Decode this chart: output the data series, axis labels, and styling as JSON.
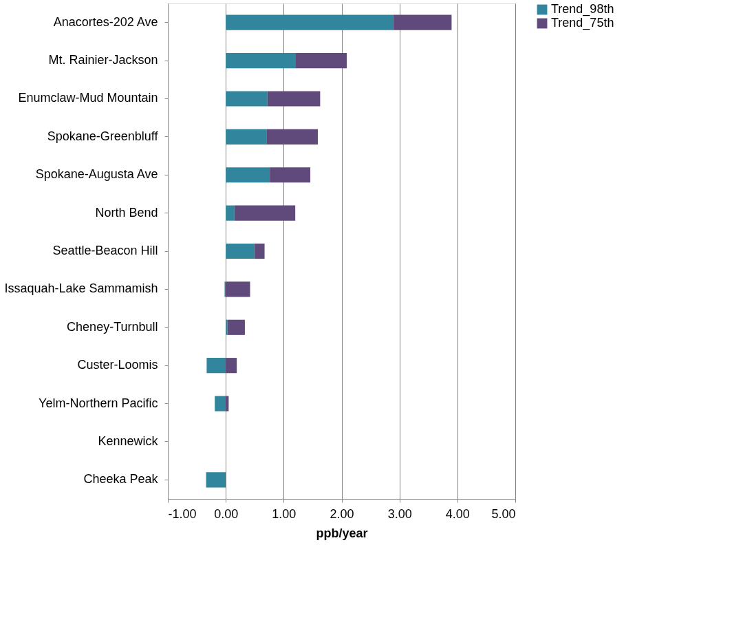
{
  "chart_data": {
    "type": "bar",
    "orientation": "horizontal",
    "stacked": true,
    "xlabel": "ppb/year",
    "categories": [
      "Anacortes-202 Ave",
      "Mt. Rainier-Jackson",
      "Enumclaw-Mud Mountain",
      "Spokane-Greenbluff",
      "Spokane-Augusta Ave",
      "North Bend",
      "Seattle-Beacon Hill",
      "Issaquah-Lake Sammamish",
      "Cheney-Turnbull",
      "Custer-Loomis",
      "Yelm-Northern Pacific",
      "Kennewick",
      "Cheeka Peak"
    ],
    "series": [
      {
        "name": "Trend_98th",
        "color": "#31859c",
        "values": [
          2.89,
          1.21,
          0.72,
          0.71,
          0.76,
          0.15,
          0.5,
          -0.02,
          0.03,
          -0.33,
          -0.19,
          null,
          -0.34
        ]
      },
      {
        "name": "Trend_75th",
        "color": "#604a7b",
        "values": [
          1.01,
          0.88,
          0.91,
          0.88,
          0.7,
          1.05,
          0.17,
          0.42,
          0.3,
          0.19,
          0.05,
          null,
          null
        ]
      }
    ],
    "xlim": [
      -1,
      5
    ],
    "xticks": [
      {
        "value": -1,
        "label": "-1.00"
      },
      {
        "value": 0,
        "label": "0.00"
      },
      {
        "value": 1,
        "label": "1.00"
      },
      {
        "value": 2,
        "label": "2.00"
      },
      {
        "value": 3,
        "label": "3.00"
      },
      {
        "value": 4,
        "label": "4.00"
      },
      {
        "value": 5,
        "label": "5.00"
      }
    ],
    "grid": "x",
    "legend": "right"
  }
}
